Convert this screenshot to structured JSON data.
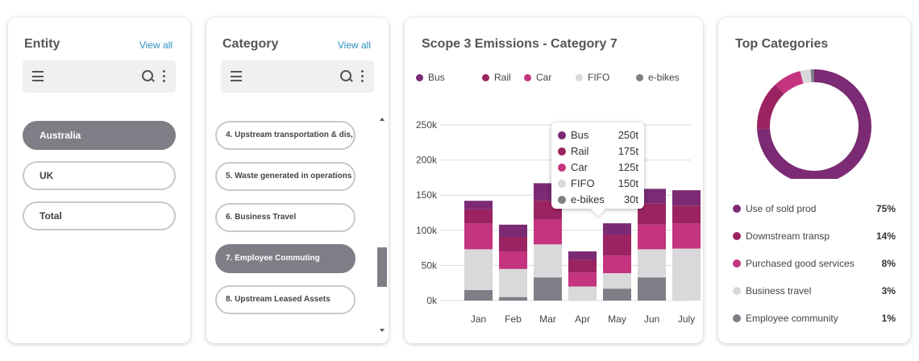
{
  "entity": {
    "title": "Entity",
    "view_all": "View all",
    "items": [
      {
        "label": "Australia",
        "active": true
      },
      {
        "label": "UK",
        "active": false
      },
      {
        "label": "Total",
        "active": false
      }
    ]
  },
  "category": {
    "title": "Category",
    "view_all": "View all",
    "items": [
      {
        "label": "4. Upstream transportation & dis,",
        "active": false
      },
      {
        "label": "5. Waste generated in operations",
        "active": false
      },
      {
        "label": "6. Business Travel",
        "active": false
      },
      {
        "label": "7. Employee Commuting",
        "active": true
      },
      {
        "label": "8. Upstream Leased Assets",
        "active": false
      }
    ]
  },
  "scope_chart": {
    "title": "Scope 3 Emissions - Category 7",
    "legend": [
      {
        "name": "Bus",
        "color": "#7b2a73"
      },
      {
        "name": "Rail",
        "color": "#9c2361"
      },
      {
        "name": "Car",
        "color": "#c4347f"
      },
      {
        "name": "FIFO",
        "color": "#d9d9db"
      },
      {
        "name": "e-bikes",
        "color": "#7f7e86"
      }
    ],
    "tooltip": {
      "rows": [
        {
          "name": "Bus",
          "value": "250t",
          "color": "#7b2a73"
        },
        {
          "name": "Rail",
          "value": "175t",
          "color": "#9c2361"
        },
        {
          "name": "Car",
          "value": "125t",
          "color": "#c4347f"
        },
        {
          "name": "FIFO",
          "value": "150t",
          "color": "#d9d9db"
        },
        {
          "name": "e-bikes",
          "value": "30t",
          "color": "#7f7e86"
        }
      ]
    }
  },
  "top_categories": {
    "title": "Top Categories",
    "items": [
      {
        "label": "Use of sold prod",
        "pct": "75%",
        "value": 75,
        "color": "#7b2a73"
      },
      {
        "label": "Downstream transp",
        "pct": "14%",
        "value": 14,
        "color": "#9c2361"
      },
      {
        "label": "Purchased good services",
        "pct": "8%",
        "value": 8,
        "color": "#c4347f"
      },
      {
        "label": "Business travel",
        "pct": "3%",
        "value": 3,
        "color": "#d9d9db"
      },
      {
        "label": "Employee community",
        "pct": "1%",
        "value": 1,
        "color": "#7f7e86"
      }
    ]
  },
  "chart_data": [
    {
      "type": "bar",
      "stacked": true,
      "title": "Scope 3 Emissions - Category 7",
      "categories": [
        "Jan",
        "Feb",
        "Mar",
        "Apr",
        "May",
        "Jun",
        "July"
      ],
      "series": [
        {
          "name": "e-bikes",
          "color": "#7f7e86",
          "values": [
            15,
            5,
            33,
            0,
            17,
            33,
            0
          ]
        },
        {
          "name": "FIFO",
          "color": "#d9d9db",
          "values": [
            58,
            40,
            47,
            20,
            22,
            40,
            74
          ]
        },
        {
          "name": "Car",
          "color": "#c4347f",
          "values": [
            37,
            25,
            35,
            20,
            25,
            35,
            36
          ]
        },
        {
          "name": "Rail",
          "color": "#9c2361",
          "values": [
            20,
            20,
            27,
            18,
            30,
            30,
            25
          ]
        },
        {
          "name": "Bus",
          "color": "#7b2a73",
          "values": [
            12,
            18,
            25,
            12,
            16,
            21,
            22
          ]
        }
      ],
      "yticks": [
        "0k",
        "50k",
        "100k",
        "150k",
        "200k",
        "250k"
      ],
      "ylim": [
        0,
        250
      ],
      "grid": true,
      "legend": "top"
    },
    {
      "type": "pie",
      "donut": true,
      "title": "Top Categories",
      "labels": [
        "Use of sold prod",
        "Downstream transp",
        "Purchased good services",
        "Business travel",
        "Employee community"
      ],
      "values": [
        75,
        14,
        8,
        3,
        1
      ]
    }
  ]
}
